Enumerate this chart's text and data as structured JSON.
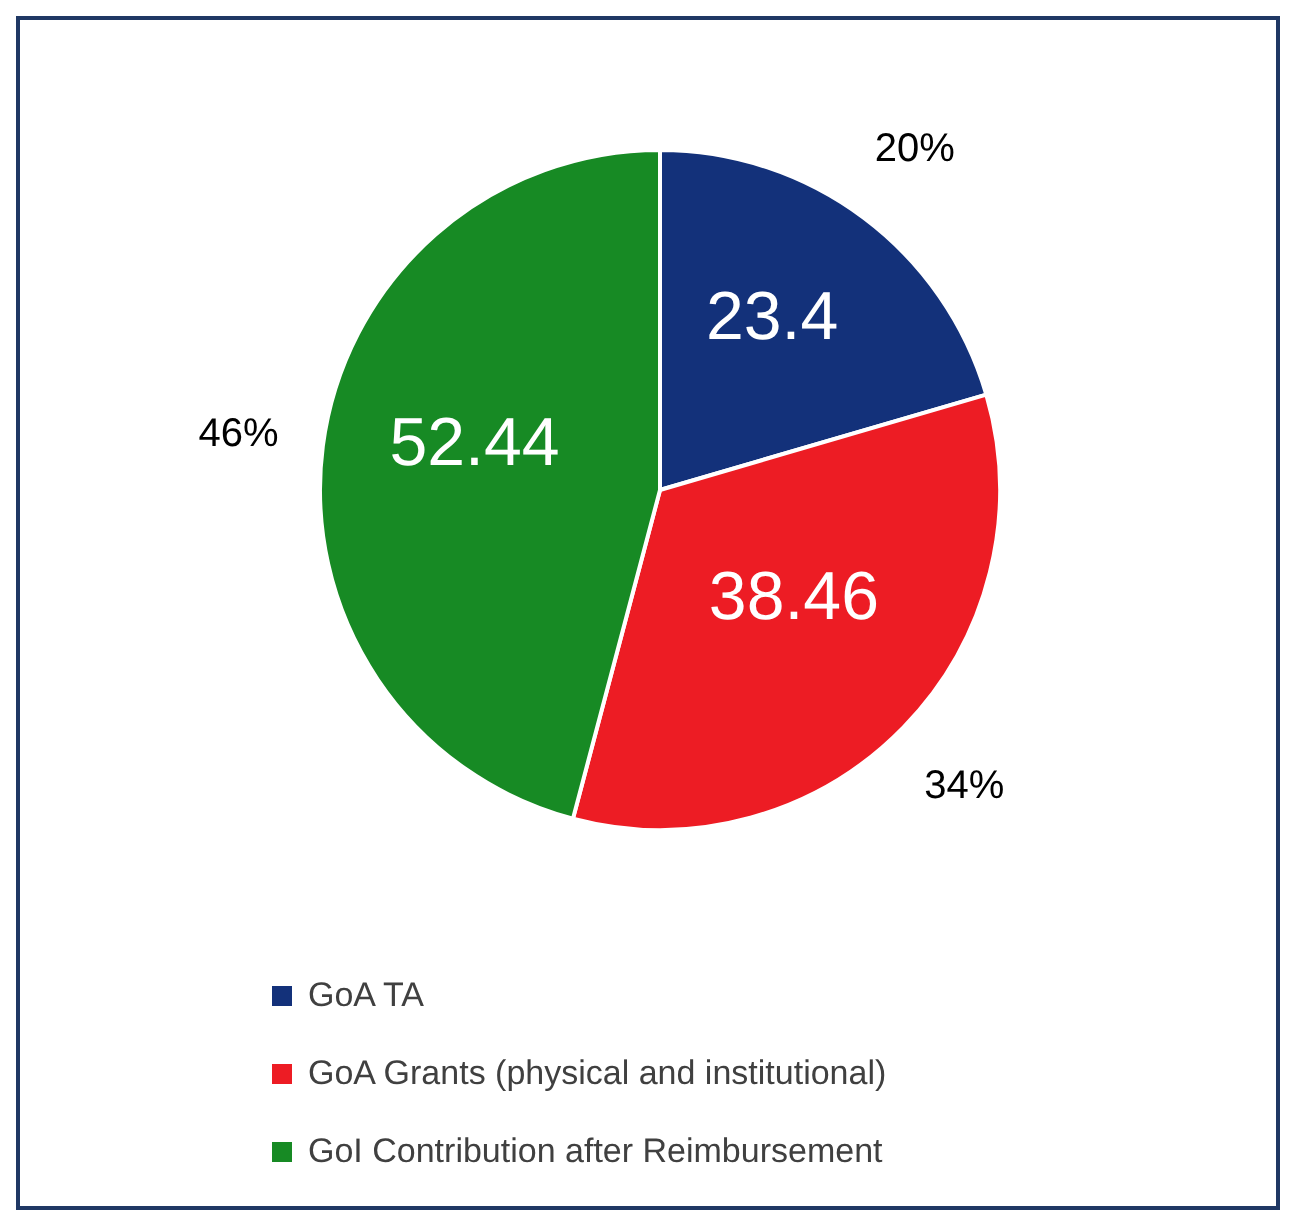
{
  "chart_data": {
    "type": "pie",
    "categories": [
      "GoA TA",
      "GoA Grants (physical and institutional)",
      "GoI Contribution after Reimbursement"
    ],
    "values": [
      23.4,
      38.46,
      52.44
    ],
    "colors": [
      "#13317a",
      "#ed1c24",
      "#178a24"
    ],
    "data_labels": true,
    "annotations": [
      "20%",
      "34%",
      "46%"
    ],
    "legend": "bottom"
  }
}
